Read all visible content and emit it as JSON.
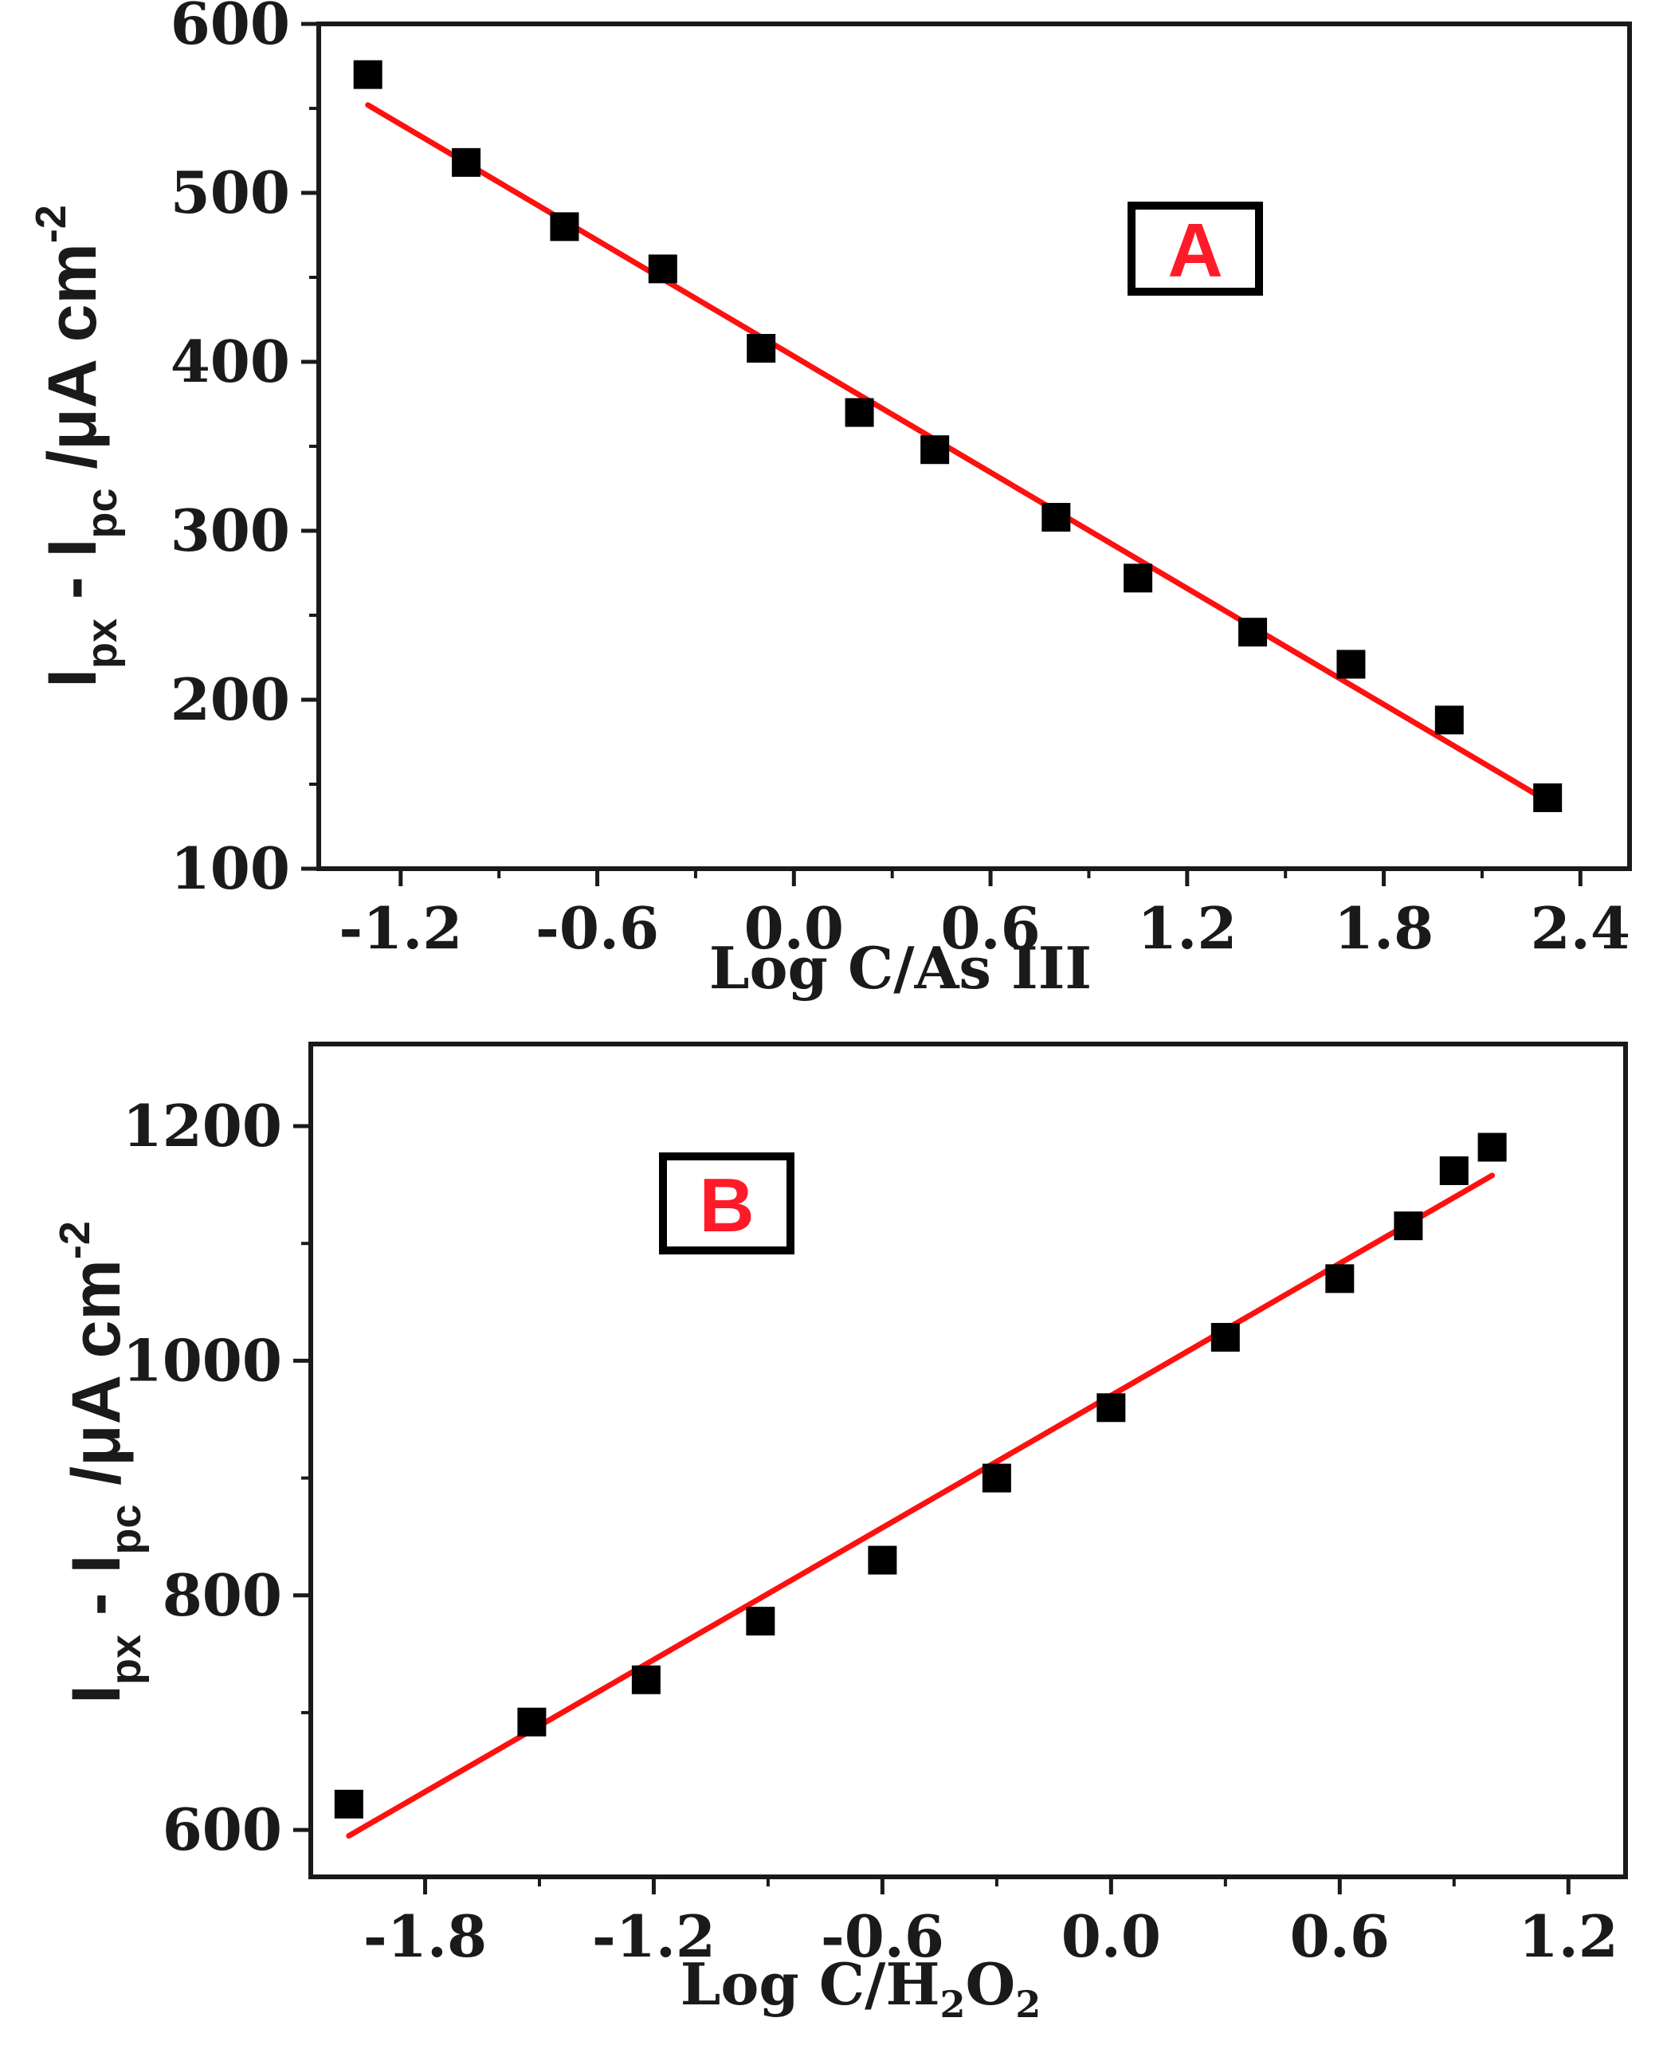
{
  "colors": {
    "marker": "#000000",
    "fit_line": "#ff1010",
    "panel_label": "#ff1a2a",
    "axis": "#1a1a1a"
  },
  "chart_data": [
    {
      "type": "scatter",
      "panel_label": "A",
      "ylabel": {
        "I": "I",
        "sub1": "px",
        "mid": " - I",
        "sub2": "pc",
        "unit": " /μA cm",
        "sup": "-2"
      },
      "xlabel": {
        "text": "Log C/As III"
      },
      "xlim": [
        -1.45,
        2.55
      ],
      "ylim": [
        100,
        600
      ],
      "xticks": [
        -1.2,
        -0.6,
        0.0,
        0.6,
        1.2,
        1.8,
        2.4
      ],
      "xtick_labels": [
        "-1.2",
        "-0.6",
        "0.0",
        "0.6",
        "1.2",
        "1.8",
        "2.4"
      ],
      "yticks": [
        100,
        200,
        300,
        400,
        500,
        600
      ],
      "ytick_labels": [
        "100",
        "200",
        "300",
        "400",
        "500",
        "600"
      ],
      "points": [
        {
          "x": -1.3,
          "y": 570
        },
        {
          "x": -1.0,
          "y": 518
        },
        {
          "x": -0.7,
          "y": 480
        },
        {
          "x": -0.4,
          "y": 455
        },
        {
          "x": -0.1,
          "y": 408
        },
        {
          "x": 0.2,
          "y": 370
        },
        {
          "x": 0.43,
          "y": 348
        },
        {
          "x": 0.8,
          "y": 308
        },
        {
          "x": 1.05,
          "y": 272
        },
        {
          "x": 1.4,
          "y": 240
        },
        {
          "x": 1.7,
          "y": 221
        },
        {
          "x": 2.0,
          "y": 188
        },
        {
          "x": 2.3,
          "y": 142
        }
      ],
      "fit_line": {
        "x": [
          -1.3,
          2.3
        ],
        "y": [
          552,
          140
        ]
      }
    },
    {
      "type": "scatter",
      "panel_label": "B",
      "ylabel": {
        "I": "I",
        "sub1": "px",
        "mid": " - I",
        "sub2": "pc",
        "unit": " /μA cm",
        "sup": "-2"
      },
      "xlabel": {
        "base": "Log C/H",
        "sub1": "2",
        "mid": "O",
        "sub2": "2"
      },
      "xlim": [
        -2.1,
        1.35
      ],
      "ylim": [
        560,
        1270
      ],
      "xticks": [
        -1.8,
        -1.2,
        -0.6,
        0.0,
        0.6,
        1.2
      ],
      "xtick_labels": [
        "-1.8",
        "-1.2",
        "-0.6",
        "0.0",
        "0.6",
        "1.2"
      ],
      "yticks": [
        600,
        800,
        1000,
        1200
      ],
      "ytick_labels": [
        "600",
        "800",
        "1000",
        "1200"
      ],
      "points": [
        {
          "x": -2.0,
          "y": 622
        },
        {
          "x": -1.52,
          "y": 692
        },
        {
          "x": -1.22,
          "y": 728
        },
        {
          "x": -0.92,
          "y": 778
        },
        {
          "x": -0.6,
          "y": 830
        },
        {
          "x": -0.3,
          "y": 900
        },
        {
          "x": 0.0,
          "y": 960
        },
        {
          "x": 0.3,
          "y": 1020
        },
        {
          "x": 0.6,
          "y": 1070
        },
        {
          "x": 0.78,
          "y": 1115
        },
        {
          "x": 0.9,
          "y": 1162
        },
        {
          "x": 1.0,
          "y": 1182
        }
      ],
      "fit_line": {
        "x": [
          -2.0,
          1.0
        ],
        "y": [
          595,
          1158
        ]
      }
    }
  ]
}
